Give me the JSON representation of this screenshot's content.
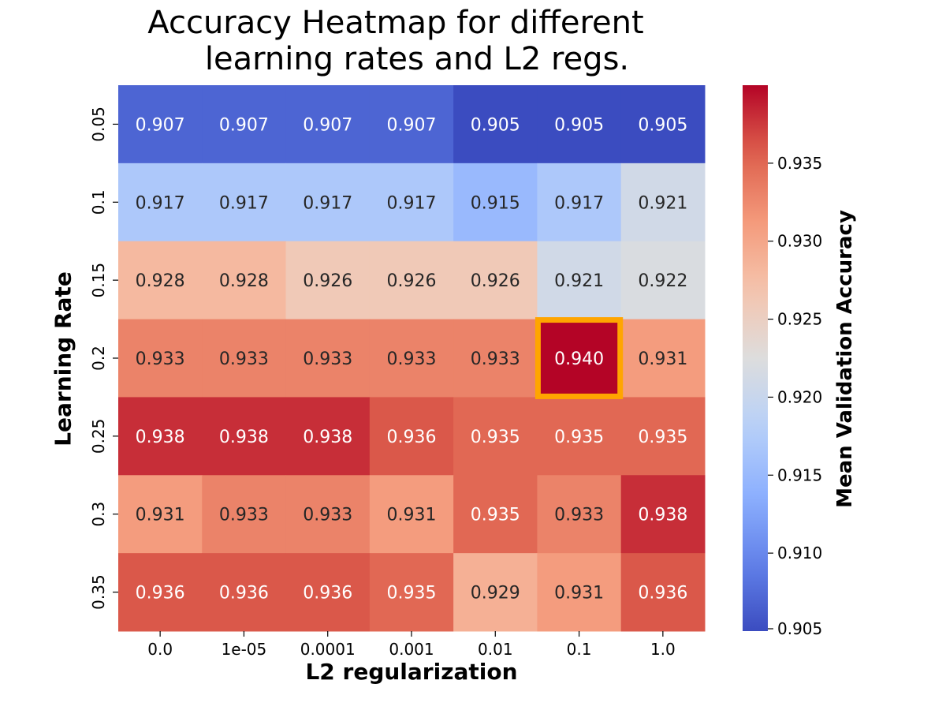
{
  "chart_data": {
    "type": "heatmap",
    "title_lines": [
      "Accuracy Heatmap for different",
      "learning rates and L2 regs."
    ],
    "xlabel": "L2 regularization",
    "ylabel": "Learning Rate",
    "colorbar_label": "Mean Validation Accuracy",
    "x_categories": [
      "0.0",
      "1e-05",
      "0.0001",
      "0.001",
      "0.01",
      "0.1",
      "1.0"
    ],
    "y_categories": [
      "0.05",
      "0.1",
      "0.15",
      "0.2",
      "0.25",
      "0.3",
      "0.35"
    ],
    "values": [
      [
        0.907,
        0.907,
        0.907,
        0.907,
        0.905,
        0.905,
        0.905
      ],
      [
        0.917,
        0.917,
        0.917,
        0.917,
        0.915,
        0.917,
        0.921
      ],
      [
        0.928,
        0.928,
        0.926,
        0.926,
        0.926,
        0.921,
        0.922
      ],
      [
        0.933,
        0.933,
        0.933,
        0.933,
        0.933,
        0.94,
        0.931
      ],
      [
        0.938,
        0.938,
        0.938,
        0.936,
        0.935,
        0.935,
        0.935
      ],
      [
        0.931,
        0.933,
        0.933,
        0.931,
        0.935,
        0.933,
        0.938
      ],
      [
        0.936,
        0.936,
        0.936,
        0.935,
        0.929,
        0.931,
        0.936
      ]
    ],
    "value_range": [
      0.905,
      0.94
    ],
    "colorbar_ticks": [
      "0.905",
      "0.910",
      "0.915",
      "0.920",
      "0.925",
      "0.930",
      "0.935"
    ],
    "colormap": "coolwarm",
    "highlight": {
      "row": 3,
      "col": 5,
      "color": "#FFA500"
    }
  }
}
